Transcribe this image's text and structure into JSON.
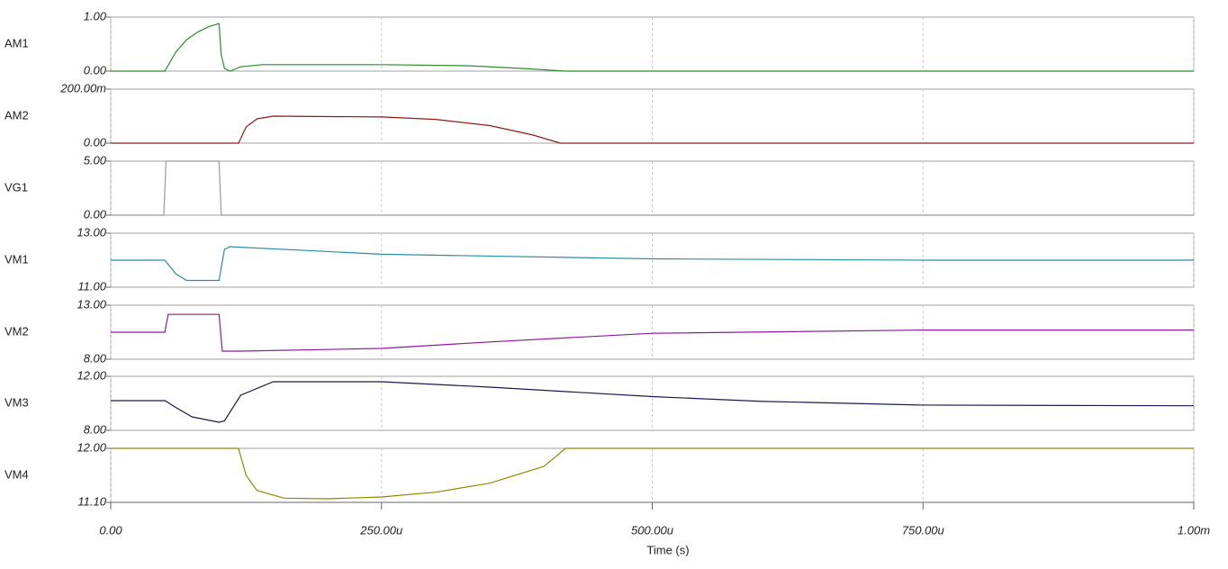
{
  "chart_data": [
    {
      "type": "line",
      "series": [
        {
          "name": "AM1",
          "color": "#2e8b2e",
          "values": [
            0,
            0,
            0.35,
            0.58,
            0.72,
            0.82,
            0.88,
            0.3,
            0.05,
            0.0,
            0.08,
            0.12,
            0.12,
            0.1,
            0.05,
            0,
            0
          ]
        }
      ],
      "x": [
        0,
        5e-05,
        6e-05,
        7e-05,
        8e-05,
        9e-05,
        0.0001,
        0.000102,
        0.000105,
        0.00011,
        0.00012,
        0.00014,
        0.00025,
        0.00033,
        0.00038,
        0.00042,
        0.001
      ],
      "ylim": [
        0,
        1
      ],
      "yticks": [
        {
          "value": 0,
          "label": "0.00"
        },
        {
          "value": 1,
          "label": "1.00"
        }
      ]
    },
    {
      "type": "line",
      "series": [
        {
          "name": "AM2",
          "color": "#8b1a1a",
          "values": [
            0,
            0,
            0.06,
            0.09,
            0.1,
            0.097,
            0.088,
            0.065,
            0.03,
            0,
            0
          ]
        }
      ],
      "x": [
        0,
        0.000118,
        0.000125,
        0.000135,
        0.00015,
        0.00025,
        0.0003,
        0.00035,
        0.00039,
        0.000415,
        0.001
      ],
      "ylim": [
        0,
        0.2
      ],
      "yticks": [
        {
          "value": 0,
          "label": "0.00"
        },
        {
          "value": 0.2,
          "label": "200.00m"
        }
      ]
    },
    {
      "type": "line",
      "series": [
        {
          "name": "VG1",
          "color": "#9a9a9a",
          "values": [
            0,
            0,
            5,
            5,
            0,
            0
          ]
        }
      ],
      "x": [
        0,
        4.9e-05,
        5.1e-05,
        0.0001,
        0.000102,
        0.001
      ],
      "ylim": [
        0,
        5
      ],
      "yticks": [
        {
          "value": 0,
          "label": "0.00"
        },
        {
          "value": 5,
          "label": "5.00"
        }
      ]
    },
    {
      "type": "line",
      "series": [
        {
          "name": "VM1",
          "color": "#2a8fa0",
          "values": [
            12,
            12,
            11.5,
            11.25,
            11.25,
            12.4,
            12.5,
            12.22,
            12.05,
            12.0,
            12.0
          ]
        }
      ],
      "x": [
        0,
        5e-05,
        6e-05,
        7e-05,
        0.0001,
        0.000105,
        0.00011,
        0.00025,
        0.0005,
        0.00075,
        0.001
      ],
      "ylim": [
        11,
        13
      ],
      "yticks": [
        {
          "value": 11,
          "label": "11.00"
        },
        {
          "value": 13,
          "label": "13.00"
        }
      ]
    },
    {
      "type": "line",
      "series": [
        {
          "name": "VM2",
          "color": "#8b1a9b",
          "values": [
            10.5,
            10.5,
            12.15,
            12.15,
            8.75,
            8.75,
            9.0,
            9.6,
            10.4,
            10.7,
            10.7
          ]
        }
      ],
      "x": [
        0,
        5e-05,
        5.3e-05,
        0.0001,
        0.000103,
        0.00012,
        0.00025,
        0.00035,
        0.0005,
        0.00075,
        0.001
      ],
      "ylim": [
        8,
        13
      ],
      "yticks": [
        {
          "value": 8,
          "label": "8.00"
        },
        {
          "value": 13,
          "label": "13.00"
        }
      ]
    },
    {
      "type": "line",
      "series": [
        {
          "name": "VM3",
          "color": "#1a1a4a",
          "values": [
            10.2,
            10.2,
            9.7,
            9.0,
            8.6,
            8.7,
            10.6,
            11.6,
            11.6,
            11.2,
            10.5,
            10.15,
            9.87,
            9.82
          ]
        }
      ],
      "x": [
        0,
        5e-05,
        6e-05,
        7.5e-05,
        0.0001,
        0.000105,
        0.00012,
        0.00015,
        0.00025,
        0.00035,
        0.0005,
        0.0006,
        0.00075,
        0.001
      ],
      "ylim": [
        8,
        12
      ],
      "yticks": [
        {
          "value": 8,
          "label": "8.00"
        },
        {
          "value": 12,
          "label": "12.00"
        }
      ]
    },
    {
      "type": "line",
      "series": [
        {
          "name": "VM4",
          "color": "#8b8b00",
          "values": [
            12,
            12,
            11.55,
            11.3,
            11.17,
            11.16,
            11.19,
            11.27,
            11.42,
            11.7,
            12,
            12
          ]
        }
      ],
      "x": [
        0,
        0.000118,
        0.000125,
        0.000135,
        0.00016,
        0.0002,
        0.00025,
        0.0003,
        0.00035,
        0.0004,
        0.00042,
        0.001
      ],
      "ylim": [
        11.1,
        12
      ],
      "yticks": [
        {
          "value": 11.1,
          "label": "11.10"
        },
        {
          "value": 12,
          "label": "12.00"
        }
      ],
      "xlim": [
        0,
        0.001
      ],
      "xlabel": "Time (s)",
      "xticks": [
        {
          "value": 0,
          "label": "0.00"
        },
        {
          "value": 0.00025,
          "label": "250.00u"
        },
        {
          "value": 0.0005,
          "label": "500.00u"
        },
        {
          "value": 0.00075,
          "label": "750.00u"
        },
        {
          "value": 0.001,
          "label": "1.00m"
        }
      ]
    }
  ]
}
